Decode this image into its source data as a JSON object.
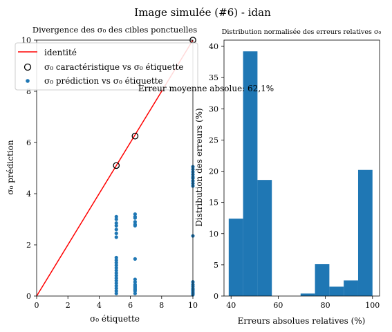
{
  "figure": {
    "suptitle": "Image simulée (#6) - idan"
  },
  "chart_data": [
    {
      "type": "scatter",
      "title": "Divergence des σ₀ des cibles ponctuelles",
      "xlabel": "σ₀ étiquette",
      "ylabel": "σ₀ prédiction",
      "xlim": [
        0,
        10
      ],
      "ylim": [
        0,
        10
      ],
      "xticks": [
        "0",
        "2",
        "4",
        "6",
        "8",
        "10"
      ],
      "yticks": [
        "0",
        "2",
        "4",
        "6",
        "8",
        "10"
      ],
      "legend_position": "upper-left",
      "annotation": "Erreur moyenne absolue: 62,1%",
      "series": [
        {
          "name": "identité",
          "kind": "line",
          "color": "#ff0000",
          "x": [
            0,
            10
          ],
          "y": [
            0,
            10
          ]
        },
        {
          "name": "σ₀ caractéristique vs σ₀ étiquette",
          "kind": "open-circle",
          "color": "#000000",
          "x": [
            5.1,
            6.3,
            10.0
          ],
          "y": [
            5.1,
            6.25,
            10.0
          ]
        },
        {
          "name": "σ₀ prédiction vs σ₀ étiquette",
          "kind": "dot",
          "color": "#1f77b4",
          "x": [
            5.1,
            5.1,
            5.1,
            5.1,
            5.1,
            5.1,
            5.1,
            5.1,
            5.1,
            5.1,
            5.1,
            5.1,
            5.1,
            5.1,
            5.1,
            5.1,
            5.1,
            5.1,
            5.1,
            5.1,
            5.1,
            5.1,
            6.3,
            6.3,
            6.3,
            6.3,
            6.3,
            6.3,
            6.3,
            6.3,
            6.3,
            6.3,
            6.3,
            6.3,
            6.3,
            6.3,
            6.3,
            6.3,
            10,
            10,
            10,
            10,
            10,
            10,
            10,
            10,
            10,
            10,
            10,
            10,
            10,
            10,
            10,
            10,
            10,
            10,
            10
          ],
          "y": [
            3.1,
            3.0,
            2.85,
            2.75,
            2.6,
            2.45,
            2.3,
            1.5,
            1.4,
            1.3,
            1.2,
            1.1,
            1.0,
            0.9,
            0.8,
            0.7,
            0.6,
            0.5,
            0.4,
            0.3,
            0.2,
            0.1,
            3.2,
            3.1,
            3.05,
            2.9,
            2.8,
            2.75,
            1.45,
            0.65,
            0.55,
            0.45,
            0.4,
            0.35,
            0.3,
            0.25,
            0.2,
            0.1,
            5.05,
            4.95,
            4.85,
            4.75,
            4.65,
            4.6,
            4.5,
            4.4,
            4.3,
            2.35,
            0.55,
            0.45,
            0.38,
            0.3,
            0.25,
            0.2,
            0.15,
            0.1,
            0.05
          ]
        }
      ]
    },
    {
      "type": "bar",
      "title": "Distribution normalisée des erreurs relatives σ₀",
      "xlabel": "Erreurs absolues relatives (%)",
      "ylabel": "Distribution des erreurs (%)",
      "xlim": [
        37,
        103
      ],
      "ylim": [
        0,
        41
      ],
      "xticks": [
        "40",
        "60",
        "80",
        "100"
      ],
      "yticks": [
        "0",
        "5",
        "10",
        "15",
        "20",
        "25",
        "30",
        "35",
        "40"
      ],
      "color": "#1f77b4",
      "bins": [
        {
          "from": 39.0,
          "to": 45.1,
          "value": 12.4
        },
        {
          "from": 45.1,
          "to": 51.2,
          "value": 39.2
        },
        {
          "from": 51.2,
          "to": 57.3,
          "value": 18.6
        },
        {
          "from": 57.3,
          "to": 63.4,
          "value": 0
        },
        {
          "from": 63.4,
          "to": 69.5,
          "value": 0
        },
        {
          "from": 69.5,
          "to": 75.6,
          "value": 0.4
        },
        {
          "from": 75.6,
          "to": 81.7,
          "value": 5.1
        },
        {
          "from": 81.7,
          "to": 87.8,
          "value": 1.5
        },
        {
          "from": 87.8,
          "to": 93.9,
          "value": 2.5
        },
        {
          "from": 93.9,
          "to": 100.0,
          "value": 20.2
        }
      ]
    }
  ]
}
